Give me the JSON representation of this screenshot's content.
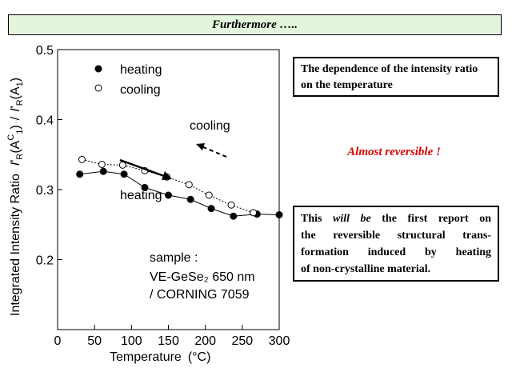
{
  "banner": {
    "text": "Furthermore ….."
  },
  "info_box": {
    "text": "The dependence of the intensity ratio on the temperature"
  },
  "highlight": {
    "text": "Almost reversible !"
  },
  "claim_box": {
    "lines": [
      {
        "pre": "This ",
        "em": "will be",
        "post": " the first report on"
      },
      {
        "pre": "the reversible structural trans-"
      },
      {
        "pre": "formation induced by heating"
      },
      {
        "pre": "of non-crystalline material."
      }
    ]
  },
  "chart_data": {
    "type": "line",
    "xlabel": "Temperature",
    "xlabel_unit": "(°C)",
    "ylabel_prefix": "Integrated Intensity Ratio",
    "ylabel_formula": "I'R(AC1) / I'R(A1)",
    "xlim": [
      0,
      300
    ],
    "ylim": [
      0.1,
      0.5
    ],
    "x_ticks": [
      "0",
      "50",
      "100",
      "150",
      "200",
      "250",
      "300"
    ],
    "y_ticks": [
      "0.2",
      "0.3",
      "0.4",
      "0.5"
    ],
    "grid": false,
    "legend_position": "top-left",
    "series": [
      {
        "name": "heating",
        "marker": "filled-circle",
        "line": "solid",
        "x": [
          30,
          62,
          90,
          118,
          150,
          180,
          208,
          238,
          270,
          300
        ],
        "y": [
          0.322,
          0.326,
          0.322,
          0.303,
          0.292,
          0.286,
          0.273,
          0.262,
          0.265,
          0.264
        ]
      },
      {
        "name": "cooling",
        "marker": "open-circle",
        "line": "dotted",
        "x": [
          33,
          60,
          88,
          118,
          148,
          178,
          205,
          235,
          265
        ],
        "y": [
          0.343,
          0.336,
          0.335,
          0.327,
          0.318,
          0.307,
          0.292,
          0.278,
          0.267
        ]
      }
    ],
    "annotations": {
      "cooling_label": "cooling",
      "heating_label": "heating",
      "sample_title": "sample :",
      "sample_line1": "VE-GeSe₂ 650 nm",
      "sample_line2": "/ CORNING 7059"
    }
  }
}
